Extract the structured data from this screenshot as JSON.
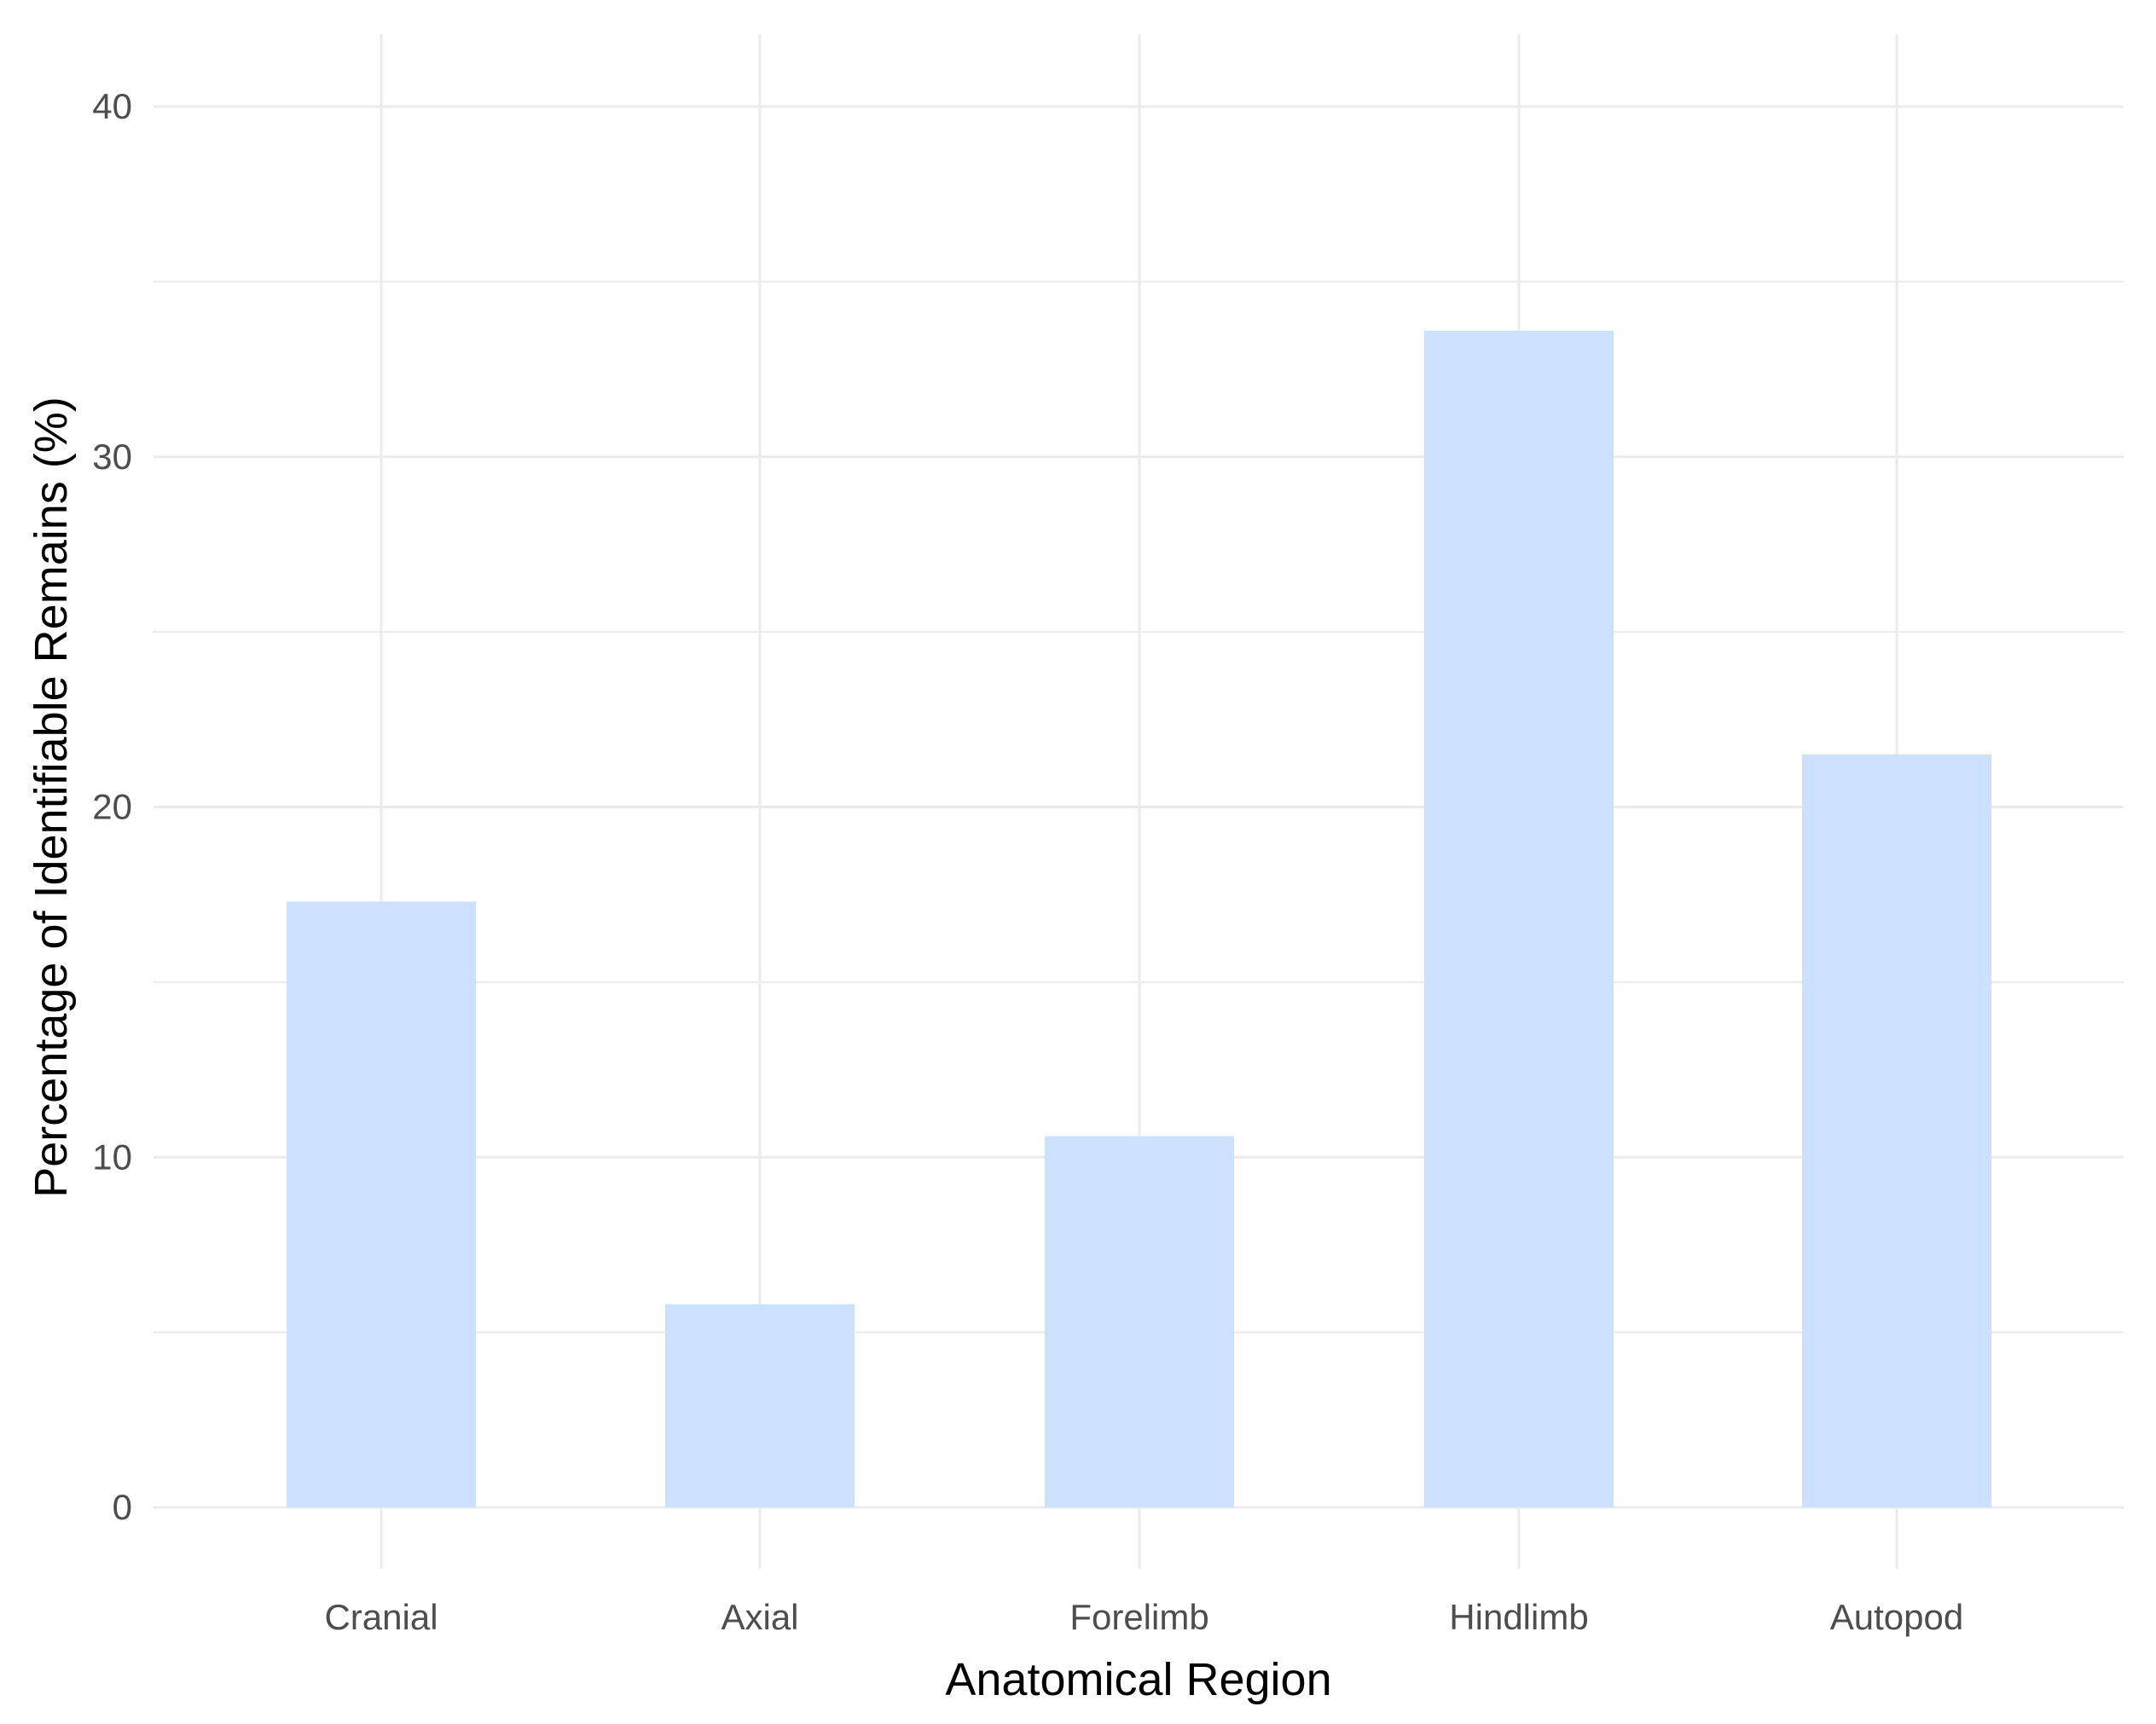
{
  "chart_data": {
    "type": "bar",
    "title": "",
    "xlabel": "Anatomical Region",
    "ylabel": "Percentage of Identifiable Remains (%)",
    "categories": [
      "Cranial",
      "Axial",
      "Forelimb",
      "Hindlimb",
      "Autopod"
    ],
    "values": [
      17.3,
      5.8,
      10.6,
      33.6,
      21.5
    ],
    "ylim": [
      0,
      40
    ],
    "yticks": [
      0,
      10,
      20,
      30,
      40
    ],
    "grid": true,
    "legend": "none",
    "bar_color": "#cce0ff",
    "grid_color": "#ebebeb"
  }
}
